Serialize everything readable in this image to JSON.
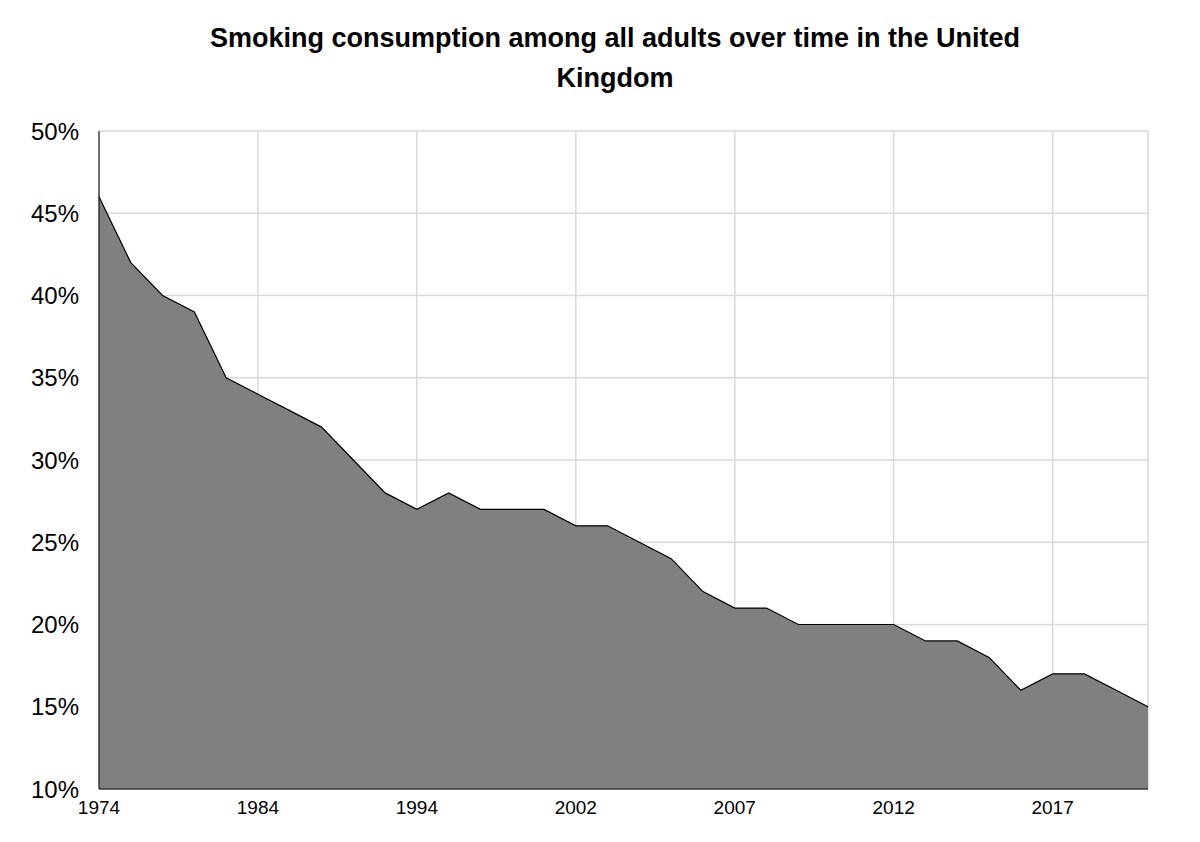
{
  "chart_data": {
    "type": "area",
    "title": "Smoking consumption among all adults over time in the United Kingdom",
    "categories": [
      "1974",
      null,
      null,
      null,
      null,
      "1984",
      null,
      null,
      null,
      null,
      "1994",
      null,
      null,
      null,
      null,
      "2002",
      null,
      null,
      null,
      null,
      "2007",
      null,
      null,
      null,
      null,
      "2012",
      null,
      null,
      null,
      null,
      "2017",
      null,
      null,
      null
    ],
    "values": [
      46,
      42,
      40,
      39,
      35,
      34,
      33,
      32,
      30,
      28,
      27,
      28,
      27,
      27,
      27,
      26,
      26,
      25,
      24,
      22,
      21,
      21,
      20,
      20,
      20,
      20,
      19,
      19,
      18,
      16,
      17,
      17,
      16,
      15
    ],
    "color": "#808080",
    "ylim": [
      10,
      50
    ],
    "yticks": [
      {
        "value": 10,
        "label": "10%"
      },
      {
        "value": 15,
        "label": "15%"
      },
      {
        "value": 20,
        "label": "20%"
      },
      {
        "value": 25,
        "label": "25%"
      },
      {
        "value": 30,
        "label": "30%"
      },
      {
        "value": 35,
        "label": "35%"
      },
      {
        "value": 40,
        "label": "40%"
      },
      {
        "value": 45,
        "label": "45%"
      },
      {
        "value": 50,
        "label": "50%"
      }
    ],
    "grid": true
  }
}
